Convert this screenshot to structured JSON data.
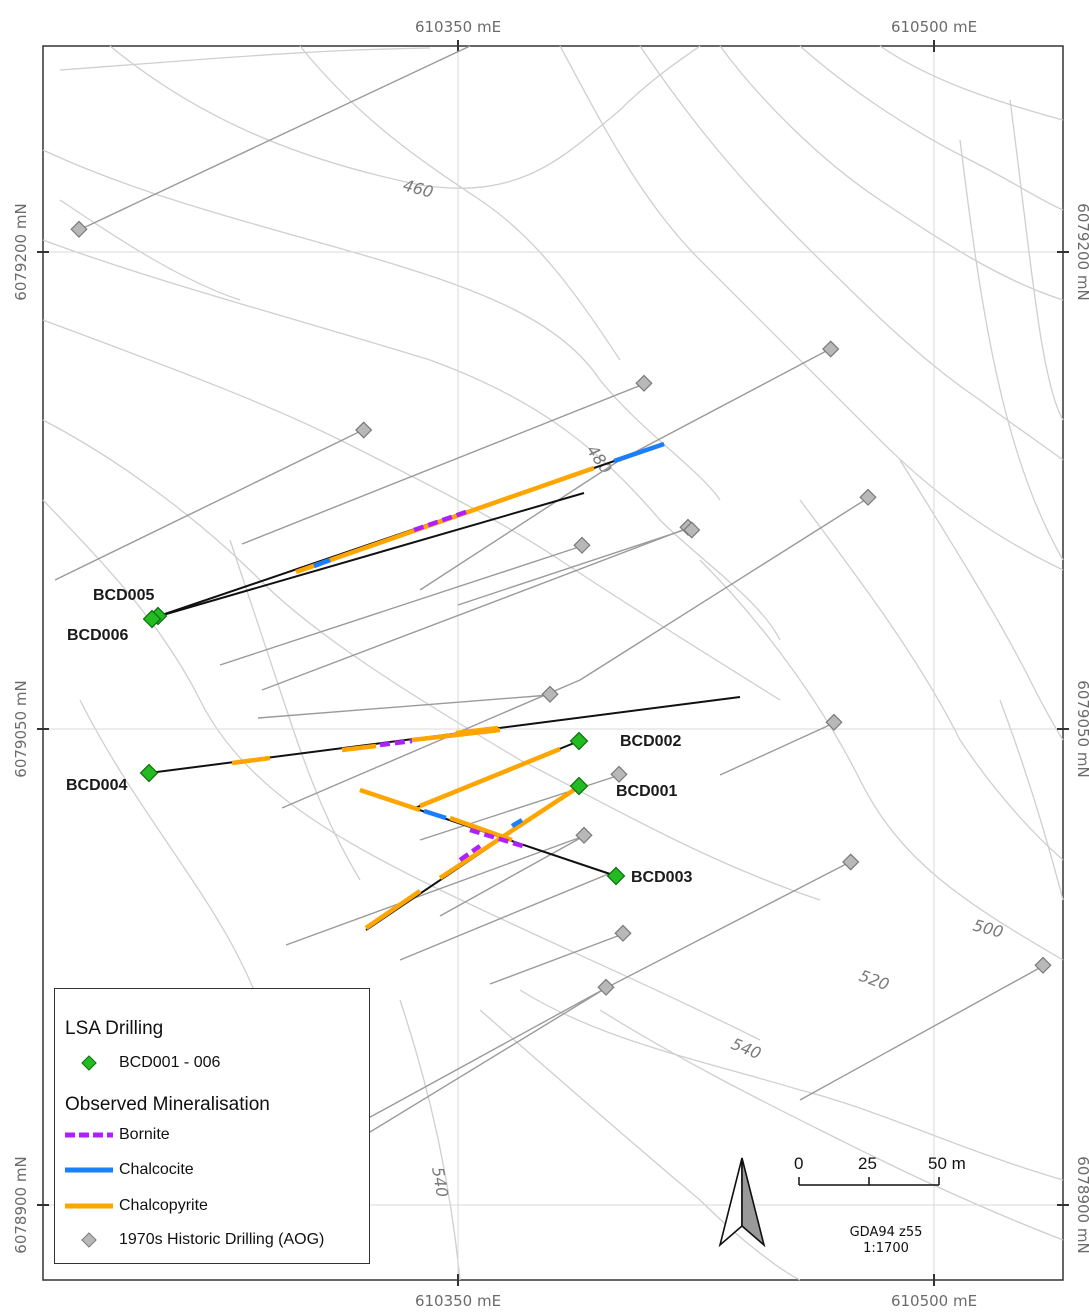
{
  "axes": {
    "easting_top": [
      "610350 mE",
      "610500 mE"
    ],
    "easting_bottom": [
      "610350 mE",
      "610500 mE"
    ],
    "northing_left": [
      "6079200 mN",
      "6079050 mN",
      "6078900 mN"
    ],
    "northing_right": [
      "6079200 mN",
      "6079050 mN",
      "6078900 mN"
    ]
  },
  "contour_labels": [
    "460",
    "480",
    "500",
    "520",
    "540",
    "540"
  ],
  "drill_holes": {
    "labels": [
      "BCD001",
      "BCD002",
      "BCD003",
      "BCD004",
      "BCD005",
      "BCD006"
    ]
  },
  "legend": {
    "title": "LSA Drilling",
    "lsa_item": "BCD001 - 006",
    "subtitle": "Observed Mineralisation",
    "bornite": "Bornite",
    "chalcocite": "Chalcocite",
    "chalcopyrite": "Chalcopyrite",
    "historic": "1970s Historic Drilling (AOG)"
  },
  "scale_bar": {
    "ticks": [
      "0",
      "25",
      "50 m"
    ],
    "crs": "GDA94 z55",
    "ratio": "1:1700"
  },
  "colors": {
    "bornite": "#b020ff",
    "chalcocite": "#1a7fff",
    "chalcopyrite": "#ffa500",
    "lsa_collar": "#22bb22",
    "historic_collar": "#a8a8a8",
    "contour": "#cfcfcf",
    "hole_trace": "#111111",
    "historic_trace": "#9a9a9a"
  }
}
